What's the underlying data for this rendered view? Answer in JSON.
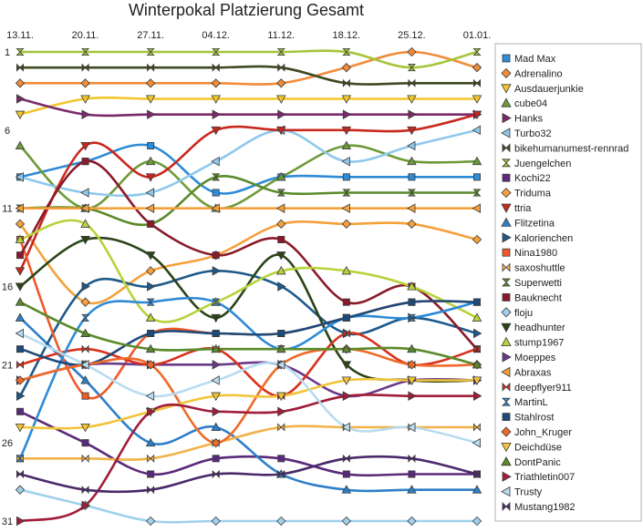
{
  "chart_data": {
    "type": "line",
    "title": "Winterpokal Platzierung Gesamt",
    "x": [
      "13.11.",
      "20.11.",
      "27.11.",
      "04.12.",
      "11.12.",
      "18.12.",
      "25.12.",
      "01.01."
    ],
    "y_ticks": [
      "1",
      "6",
      "11",
      "16",
      "21",
      "26",
      "31"
    ],
    "ylim": [
      1,
      31
    ],
    "y_inverted": true,
    "smooth": true,
    "grid": false,
    "legend_position": "right",
    "series": [
      {
        "name": "Mad Max",
        "color": "#2e8bd6",
        "marker": "square",
        "ranks": [
          9,
          8,
          7,
          10,
          9,
          9,
          9,
          9
        ]
      },
      {
        "name": "Adrenalino",
        "color": "#f08c3a",
        "marker": "diamond",
        "ranks": [
          3,
          3,
          3,
          3,
          3,
          2,
          1,
          2
        ]
      },
      {
        "name": "Ausdauerjunkie",
        "color": "#f2c62a",
        "marker": "triangle-down",
        "ranks": [
          5,
          4,
          4,
          4,
          4,
          4,
          4,
          4
        ]
      },
      {
        "name": "cube04",
        "color": "#6e9a3a",
        "marker": "triangle-up",
        "ranks": [
          7,
          11,
          8,
          11,
          9,
          7,
          8,
          8
        ]
      },
      {
        "name": "Hanks",
        "color": "#7a2a6a",
        "marker": "triangle-right",
        "ranks": [
          4,
          5,
          5,
          5,
          5,
          5,
          5,
          5
        ]
      },
      {
        "name": "Turbo32",
        "color": "#8fc8ec",
        "marker": "triangle-left",
        "ranks": [
          9,
          10,
          10,
          8,
          6,
          8,
          7,
          6
        ]
      },
      {
        "name": "bikehumanumest-rennrad",
        "color": "#3e4a22",
        "marker": "bowtie",
        "ranks": [
          2,
          2,
          2,
          2,
          2,
          3,
          3,
          3
        ]
      },
      {
        "name": "Juengelchen",
        "color": "#a6c43a",
        "marker": "hourglass",
        "ranks": [
          1,
          1,
          1,
          1,
          1,
          1,
          2,
          1
        ]
      },
      {
        "name": "Kochi22",
        "color": "#5a2a7a",
        "marker": "square",
        "ranks": [
          24,
          26,
          28,
          27,
          27,
          28,
          28,
          28
        ]
      },
      {
        "name": "Triduma",
        "color": "#f5a03a",
        "marker": "diamond",
        "ranks": [
          12,
          17,
          15,
          14,
          12,
          12,
          12,
          13
        ]
      },
      {
        "name": "ttria",
        "color": "#c8281e",
        "marker": "triangle-down",
        "ranks": [
          15,
          7,
          9,
          6,
          6,
          6,
          6,
          5
        ]
      },
      {
        "name": "Flitzetina",
        "color": "#2e7fc8",
        "marker": "triangle-up",
        "ranks": [
          18,
          22,
          26,
          25,
          28,
          29,
          29,
          29
        ]
      },
      {
        "name": "Kalorienchen",
        "color": "#1e5a8a",
        "marker": "triangle-right",
        "ranks": [
          23,
          16,
          16,
          15,
          16,
          19,
          18,
          19
        ]
      },
      {
        "name": "Nina1980",
        "color": "#ef5a2a",
        "marker": "square",
        "ranks": [
          13,
          23,
          19,
          19,
          19,
          18,
          17,
          17
        ]
      },
      {
        "name": "saxoshuttle",
        "color": "#f2b24a",
        "marker": "bowtie",
        "ranks": [
          27,
          27,
          27,
          26,
          25,
          25,
          25,
          25
        ]
      },
      {
        "name": "Superwetti",
        "color": "#5a8a2a",
        "marker": "hourglass",
        "ranks": [
          11,
          11,
          12,
          9,
          10,
          10,
          10,
          10
        ]
      },
      {
        "name": "Bauknecht",
        "color": "#8a1a2a",
        "marker": "square",
        "ranks": [
          14,
          8,
          12,
          14,
          13,
          17,
          16,
          20
        ]
      },
      {
        "name": "floju",
        "color": "#9fd0ec",
        "marker": "diamond",
        "ranks": [
          29,
          30,
          31,
          31,
          31,
          31,
          31,
          31
        ]
      },
      {
        "name": "headhunter",
        "color": "#2a4418",
        "marker": "triangle-down",
        "ranks": [
          16,
          13,
          14,
          18,
          14,
          21,
          22,
          22
        ]
      },
      {
        "name": "stump1967",
        "color": "#b8d23a",
        "marker": "triangle-up",
        "ranks": [
          13,
          12,
          18,
          17,
          15,
          15,
          16,
          18
        ]
      },
      {
        "name": "Moeppes",
        "color": "#6a3a8a",
        "marker": "triangle-right",
        "ranks": [
          22,
          21,
          21,
          21,
          21,
          23,
          22,
          22
        ]
      },
      {
        "name": "Abraxas",
        "color": "#f5a03a",
        "marker": "triangle-left",
        "ranks": [
          11,
          11,
          11,
          11,
          11,
          11,
          11,
          11
        ]
      },
      {
        "name": "deepflyer911",
        "color": "#d8321e",
        "marker": "bowtie",
        "ranks": [
          21,
          20,
          21,
          20,
          23,
          19,
          21,
          20
        ]
      },
      {
        "name": "MartinL",
        "color": "#2e8ad6",
        "marker": "hourglass",
        "ranks": [
          27,
          18,
          17,
          17,
          20,
          18,
          18,
          17
        ]
      },
      {
        "name": "Stahlrost",
        "color": "#1e4a7a",
        "marker": "square",
        "ranks": [
          20,
          21,
          19,
          19,
          19,
          18,
          17,
          17
        ]
      },
      {
        "name": "John_Kruger",
        "color": "#ef6a2a",
        "marker": "diamond",
        "ranks": [
          22,
          21,
          21,
          26,
          21,
          20,
          21,
          21
        ]
      },
      {
        "name": "Deichdüse",
        "color": "#f2c43a",
        "marker": "triangle-down",
        "ranks": [
          25,
          25,
          24,
          23,
          23,
          22,
          22,
          22
        ]
      },
      {
        "name": "DontPanic",
        "color": "#5a8a2a",
        "marker": "triangle-up",
        "ranks": [
          17,
          19,
          20,
          20,
          20,
          20,
          20,
          21
        ]
      },
      {
        "name": "Triathletin007",
        "color": "#a01e3a",
        "marker": "triangle-right",
        "ranks": [
          31,
          30,
          24,
          24,
          24,
          23,
          23,
          23
        ]
      },
      {
        "name": "Trusty",
        "color": "#b8dcf0",
        "marker": "triangle-left",
        "ranks": [
          19,
          21,
          23,
          22,
          21,
          25,
          25,
          26
        ]
      },
      {
        "name": "Mustang1982",
        "color": "#4a2a6a",
        "marker": "bowtie",
        "ranks": [
          28,
          29,
          29,
          28,
          28,
          27,
          27,
          28
        ]
      }
    ]
  }
}
